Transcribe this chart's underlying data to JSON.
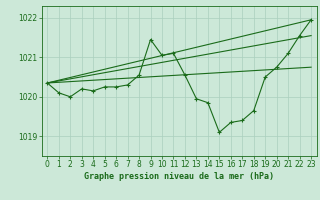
{
  "background_color": "#cce8d8",
  "grid_color": "#aacfbe",
  "line_color": "#1a6b1a",
  "title": "Graphe pression niveau de la mer (hPa)",
  "xlim": [
    -0.5,
    23.5
  ],
  "ylim": [
    1018.5,
    1022.3
  ],
  "yticks": [
    1019,
    1020,
    1021,
    1022
  ],
  "xticks": [
    0,
    1,
    2,
    3,
    4,
    5,
    6,
    7,
    8,
    9,
    10,
    11,
    12,
    13,
    14,
    15,
    16,
    17,
    18,
    19,
    20,
    21,
    22,
    23
  ],
  "series_main": {
    "x": [
      0,
      1,
      2,
      3,
      4,
      5,
      6,
      7,
      8,
      9,
      10,
      11,
      12,
      13,
      14,
      15,
      16,
      17,
      18,
      19,
      20,
      21,
      22,
      23
    ],
    "y": [
      1020.35,
      1020.1,
      1020.0,
      1020.2,
      1020.15,
      1020.25,
      1020.25,
      1020.3,
      1020.55,
      1021.45,
      1021.05,
      1021.1,
      1020.55,
      1019.95,
      1019.85,
      1019.1,
      1019.35,
      1019.4,
      1019.65,
      1020.5,
      1020.75,
      1021.1,
      1021.55,
      1021.95
    ]
  },
  "trend1": {
    "x": [
      0,
      23
    ],
    "y": [
      1020.35,
      1021.95
    ]
  },
  "trend2": {
    "x": [
      0,
      23
    ],
    "y": [
      1020.35,
      1021.55
    ]
  },
  "trend3": {
    "x": [
      0,
      23
    ],
    "y": [
      1020.35,
      1020.75
    ]
  }
}
